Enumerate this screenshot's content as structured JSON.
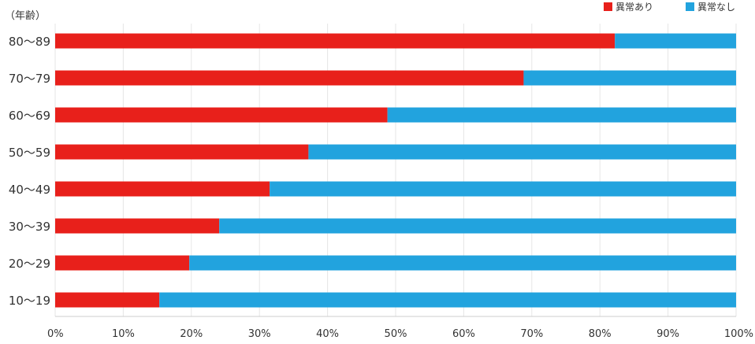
{
  "chart_data": {
    "type": "bar",
    "orientation": "horizontal",
    "stacked": "100%",
    "ylabel": "（年齢）",
    "categories": [
      "80〜89",
      "70〜79",
      "60〜69",
      "50〜59",
      "40〜49",
      "30〜39",
      "20〜29",
      "10〜19"
    ],
    "series": [
      {
        "name": "異常あり",
        "color": "#e8201b",
        "values": [
          82.2,
          68.8,
          48.8,
          37.2,
          31.5,
          24.1,
          19.7,
          15.3
        ]
      },
      {
        "name": "異常なし",
        "color": "#22a3de",
        "values": [
          17.8,
          31.2,
          51.2,
          62.8,
          68.5,
          75.9,
          80.3,
          84.7
        ]
      }
    ],
    "xlim": [
      0,
      100
    ],
    "xticks": [
      "0%",
      "10%",
      "20%",
      "30%",
      "40%",
      "50%",
      "60%",
      "70%",
      "80%",
      "90%",
      "100%"
    ],
    "grid": true,
    "legend": "top-right"
  }
}
